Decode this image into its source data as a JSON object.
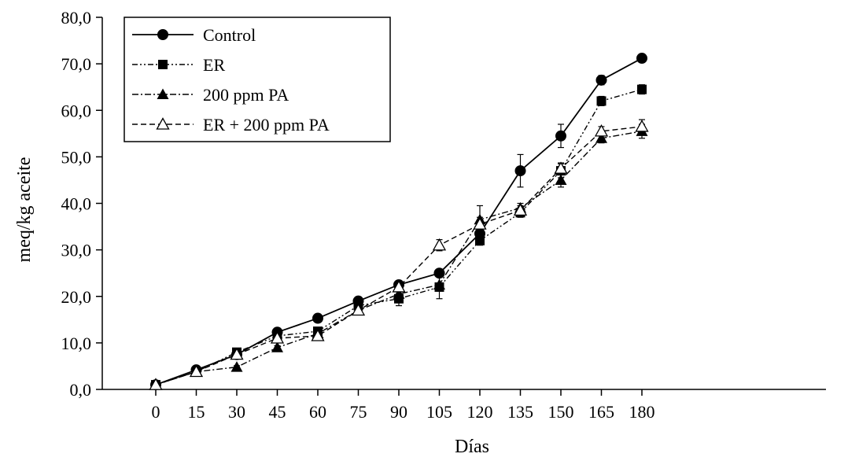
{
  "chart_data": {
    "type": "line",
    "title": "",
    "xlabel": "Días",
    "ylabel": "meq/kg aceite",
    "x": [
      0,
      15,
      30,
      45,
      60,
      75,
      90,
      105,
      120,
      135,
      150,
      165,
      180
    ],
    "x_tick_labels": [
      "0",
      "15",
      "30",
      "45",
      "60",
      "75",
      "90",
      "105",
      "120",
      "135",
      "150",
      "165",
      "180"
    ],
    "ylim": [
      0,
      80
    ],
    "y_ticks": [
      0,
      10,
      20,
      30,
      40,
      50,
      60,
      70,
      80
    ],
    "y_tick_labels": [
      "0,0",
      "10,0",
      "20,0",
      "30,0",
      "40,0",
      "50,0",
      "60,0",
      "70,0",
      "80,0"
    ],
    "grid": false,
    "legend_position": "top-left",
    "error_bars": true,
    "series": [
      {
        "name": "Control",
        "marker": "filled-circle",
        "line_style": "solid",
        "values": [
          1.0,
          4.2,
          7.5,
          12.3,
          15.3,
          19.0,
          22.5,
          25.0,
          33.5,
          47.0,
          54.5,
          66.5,
          71.2
        ],
        "errors": [
          0.2,
          0.3,
          0.4,
          0.5,
          0.4,
          0.6,
          0.5,
          0.6,
          1.5,
          3.5,
          2.5,
          1.0,
          0.5
        ]
      },
      {
        "name": "ER",
        "marker": "filled-square",
        "line_style": "dash-dot-dot",
        "values": [
          1.0,
          3.8,
          8.0,
          11.5,
          12.5,
          18.0,
          19.5,
          22.0,
          32.0,
          38.0,
          47.0,
          62.0,
          64.5
        ],
        "errors": [
          0.2,
          0.3,
          0.4,
          0.5,
          0.5,
          0.6,
          1.5,
          0.6,
          1.0,
          1.0,
          1.5,
          1.0,
          1.0
        ]
      },
      {
        "name": "200 ppm PA",
        "marker": "filled-triangle",
        "line_style": "dash-dot",
        "values": [
          1.0,
          3.8,
          4.8,
          9.0,
          12.0,
          17.0,
          20.5,
          22.5,
          36.5,
          39.0,
          45.0,
          54.0,
          55.5
        ],
        "errors": [
          0.2,
          0.3,
          0.3,
          0.4,
          0.5,
          0.6,
          1.0,
          3.0,
          3.0,
          1.0,
          1.5,
          1.0,
          1.5
        ]
      },
      {
        "name": "ER + 200 ppm PA",
        "marker": "open-triangle",
        "line_style": "dashed",
        "values": [
          1.0,
          3.8,
          7.5,
          11.0,
          11.5,
          17.0,
          22.0,
          31.0,
          35.5,
          38.5,
          47.5,
          55.5,
          56.5
        ],
        "errors": [
          0.2,
          0.3,
          0.4,
          0.5,
          0.6,
          0.6,
          0.6,
          1.2,
          1.5,
          1.0,
          1.2,
          1.0,
          1.5
        ]
      }
    ]
  }
}
